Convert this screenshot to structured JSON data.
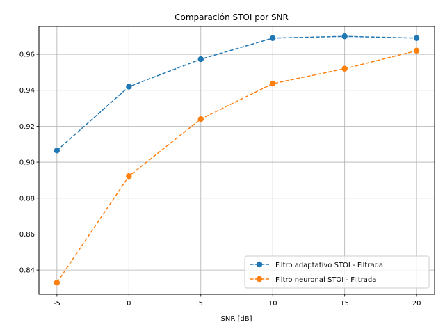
{
  "chart_data": {
    "type": "line",
    "title": "Comparación STOI por SNR",
    "xlabel": "SNR [dB]",
    "ylabel": "",
    "x": [
      -5,
      0,
      5,
      10,
      15,
      20
    ],
    "xticks": [
      "-5",
      "0",
      "5",
      "10",
      "15",
      "20"
    ],
    "yticks": [
      "0.84",
      "0.86",
      "0.88",
      "0.90",
      "0.92",
      "0.94",
      "0.96"
    ],
    "xlim": [
      -6.25,
      21.25
    ],
    "ylim": [
      0.8265,
      0.9755
    ],
    "grid": true,
    "legend_position": "lower-right",
    "series": [
      {
        "name": "Filtro adaptativo STOI - Filtrada",
        "color": "#1f77b4",
        "linestyle": "dashed",
        "marker": "circle",
        "values": [
          0.9065,
          0.942,
          0.9573,
          0.969,
          0.97,
          0.969
        ]
      },
      {
        "name": "Filtro neuronal STOI - Filtrada",
        "color": "#ff7f0e",
        "linestyle": "dashed",
        "marker": "circle",
        "values": [
          0.833,
          0.8922,
          0.924,
          0.9437,
          0.952,
          0.962
        ]
      }
    ]
  }
}
